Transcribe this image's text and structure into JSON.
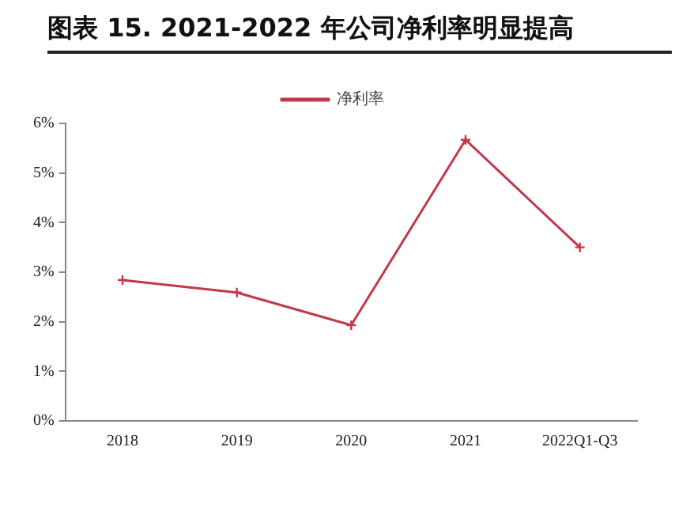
{
  "chart_data": {
    "type": "line",
    "title": "图表 15. 2021-2022 年公司净利率明显提高",
    "categories": [
      "2018",
      "2019",
      "2020",
      "2021",
      "2022Q1-Q3"
    ],
    "series": [
      {
        "name": "净利率",
        "color": "#c0394b",
        "values": [
          2.84,
          2.59,
          1.93,
          5.67,
          3.5
        ]
      }
    ],
    "ylim": [
      0,
      6
    ],
    "yticks": [
      {
        "value": 0,
        "label": "0%"
      },
      {
        "value": 1,
        "label": "1%"
      },
      {
        "value": 2,
        "label": "2%"
      },
      {
        "value": 3,
        "label": "3%"
      },
      {
        "value": 4,
        "label": "4%"
      },
      {
        "value": 5,
        "label": "5%"
      },
      {
        "value": 6,
        "label": "6%"
      }
    ],
    "grid": false,
    "legend": "top",
    "marker": "cross",
    "line_style": "solid"
  }
}
